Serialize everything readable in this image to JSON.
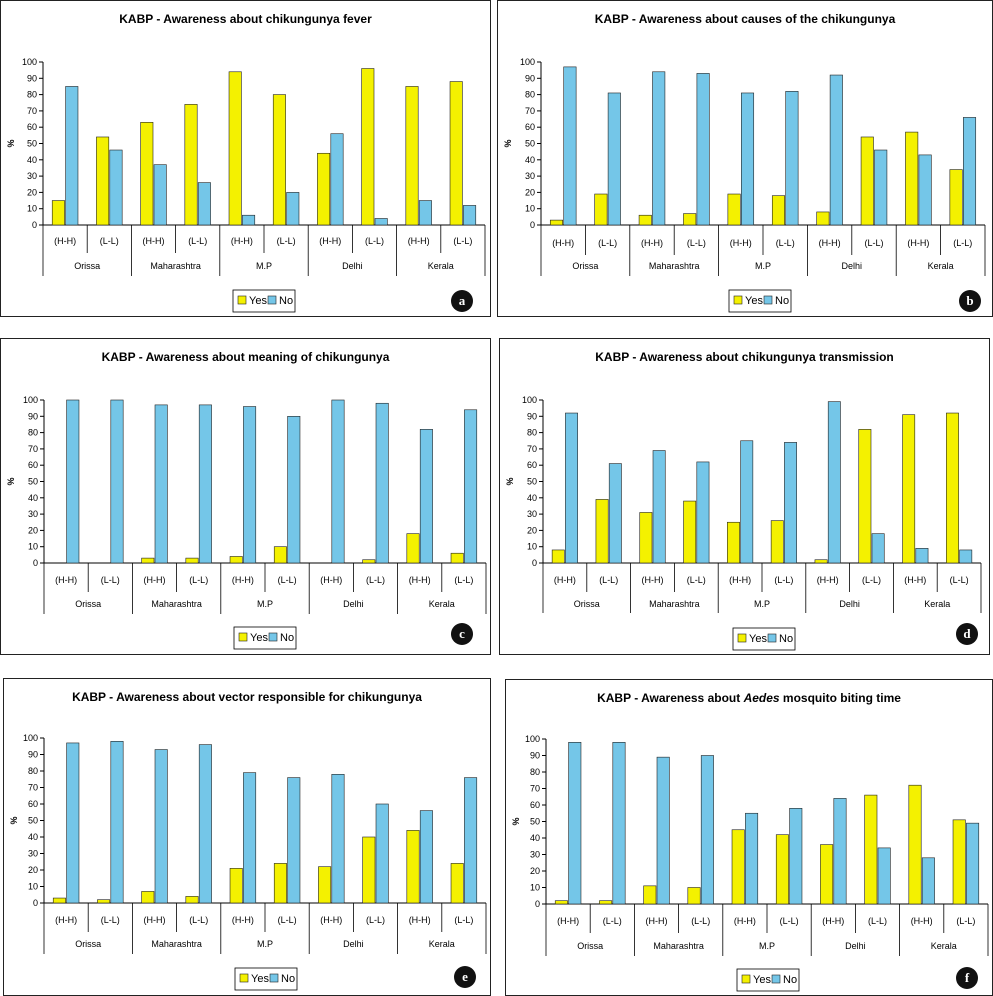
{
  "colors": {
    "yes": "#f4f100",
    "no": "#74c6e8",
    "badge": "#111111"
  },
  "chart_data": [
    {
      "id": "a",
      "type": "bar",
      "title": "KABP - Awareness about chikungunya fever",
      "title_parts": [
        {
          "text": "KABP - Awareness about chikungunya fever",
          "italic": false
        }
      ],
      "ylabel": "%",
      "ylim": [
        0,
        100
      ],
      "yticks": [
        "0",
        "10",
        "20",
        "30",
        "40",
        "50",
        "60",
        "70",
        "80",
        "90",
        "100"
      ],
      "categories": [
        "(H-H)",
        "(L-L)",
        "(H-H)",
        "(L-L)",
        "(H-H)",
        "(L-L)",
        "(H-H)",
        "(L-L)",
        "(H-H)",
        "(L-L)"
      ],
      "groups": [
        "Orissa",
        "Maharashtra",
        "M.P",
        "Delhi",
        "Kerala"
      ],
      "series": [
        {
          "name": "Yes",
          "values": [
            15,
            54,
            63,
            74,
            94,
            80,
            44,
            96,
            85,
            88
          ]
        },
        {
          "name": "No",
          "values": [
            85,
            46,
            37,
            26,
            6,
            20,
            56,
            4,
            15,
            12
          ]
        }
      ],
      "legend": [
        "Yes",
        "No"
      ],
      "badge": "a"
    },
    {
      "id": "b",
      "type": "bar",
      "title": "KABP - Awareness about causes of the chikungunya",
      "title_parts": [
        {
          "text": "KABP - Awareness about causes of the chikungunya",
          "italic": false
        }
      ],
      "ylabel": "%",
      "ylim": [
        0,
        100
      ],
      "yticks": [
        "0",
        "10",
        "20",
        "30",
        "40",
        "50",
        "60",
        "70",
        "80",
        "90",
        "100"
      ],
      "categories": [
        "(H-H)",
        "(L-L)",
        "(H-H)",
        "(L-L)",
        "(H-H)",
        "(L-L)",
        "(H-H)",
        "(L-L)",
        "(H-H)",
        "(L-L)"
      ],
      "groups": [
        "Orissa",
        "Maharashtra",
        "M.P",
        "Delhi",
        "Kerala"
      ],
      "series": [
        {
          "name": "Yes",
          "values": [
            3,
            19,
            6,
            7,
            19,
            18,
            8,
            54,
            57,
            34
          ]
        },
        {
          "name": "No",
          "values": [
            97,
            81,
            94,
            93,
            81,
            82,
            92,
            46,
            43,
            66
          ]
        }
      ],
      "legend": [
        "Yes",
        "No"
      ],
      "badge": "b"
    },
    {
      "id": "c",
      "type": "bar",
      "title": "KABP - Awareness about meaning of chikungunya",
      "title_parts": [
        {
          "text": "KABP - Awareness about meaning of chikungunya",
          "italic": false
        }
      ],
      "ylabel": "%",
      "ylim": [
        0,
        100
      ],
      "yticks": [
        "0",
        "10",
        "20",
        "30",
        "40",
        "50",
        "60",
        "70",
        "80",
        "90",
        "100"
      ],
      "categories": [
        "(H-H)",
        "(L-L)",
        "(H-H)",
        "(L-L)",
        "(H-H)",
        "(L-L)",
        "(H-H)",
        "(L-L)",
        "(H-H)",
        "(L-L)"
      ],
      "groups": [
        "Orissa",
        "Maharashtra",
        "M.P",
        "Delhi",
        "Kerala"
      ],
      "series": [
        {
          "name": "Yes",
          "values": [
            0,
            0,
            3,
            3,
            4,
            10,
            0,
            2,
            18,
            6
          ]
        },
        {
          "name": "No",
          "values": [
            100,
            100,
            97,
            97,
            96,
            90,
            100,
            98,
            82,
            94
          ]
        }
      ],
      "legend": [
        "Yes",
        "No"
      ],
      "badge": "c"
    },
    {
      "id": "d",
      "type": "bar",
      "title": "KABP - Awareness about chikungunya transmission",
      "title_parts": [
        {
          "text": "KABP - Awareness about chikungunya transmission",
          "italic": false
        }
      ],
      "ylabel": "%",
      "ylim": [
        0,
        100
      ],
      "yticks": [
        "0",
        "10",
        "20",
        "30",
        "40",
        "50",
        "60",
        "70",
        "80",
        "90",
        "100"
      ],
      "categories": [
        "(H-H)",
        "(L-L)",
        "(H-H)",
        "(L-L)",
        "(H-H)",
        "(L-L)",
        "(H-H)",
        "(L-L)",
        "(H-H)",
        "(L-L)"
      ],
      "groups": [
        "Orissa",
        "Maharashtra",
        "M.P",
        "Delhi",
        "Kerala"
      ],
      "series": [
        {
          "name": "Yes",
          "values": [
            8,
            39,
            31,
            38,
            25,
            26,
            2,
            82,
            91,
            92
          ]
        },
        {
          "name": "No",
          "values": [
            92,
            61,
            69,
            62,
            75,
            74,
            99,
            18,
            9,
            8
          ]
        }
      ],
      "legend": [
        "Yes",
        "No"
      ],
      "badge": "d"
    },
    {
      "id": "e",
      "type": "bar",
      "title": "KABP - Awareness about vector responsible for chikungunya",
      "title_parts": [
        {
          "text": "KABP - Awareness about vector responsible for chikungunya",
          "italic": false
        }
      ],
      "ylabel": "%",
      "ylim": [
        0,
        100
      ],
      "yticks": [
        "0",
        "10",
        "20",
        "30",
        "40",
        "50",
        "60",
        "70",
        "80",
        "90",
        "100"
      ],
      "categories": [
        "(H-H)",
        "(L-L)",
        "(H-H)",
        "(L-L)",
        "(H-H)",
        "(L-L)",
        "(H-H)",
        "(L-L)",
        "(H-H)",
        "(L-L)"
      ],
      "groups": [
        "Orissa",
        "Maharashtra",
        "M.P",
        "Delhi",
        "Kerala"
      ],
      "series": [
        {
          "name": "Yes",
          "values": [
            3,
            2,
            7,
            4,
            21,
            24,
            22,
            40,
            44,
            24
          ]
        },
        {
          "name": "No",
          "values": [
            97,
            98,
            93,
            96,
            79,
            76,
            78,
            60,
            56,
            76
          ]
        }
      ],
      "legend": [
        "Yes",
        "No"
      ],
      "badge": "e"
    },
    {
      "id": "f",
      "type": "bar",
      "title": "KABP - Awareness about Aedes mosquito biting time",
      "title_parts": [
        {
          "text": "KABP - Awareness about ",
          "italic": false
        },
        {
          "text": "Aedes",
          "italic": true
        },
        {
          "text": " mosquito biting time",
          "italic": false
        }
      ],
      "ylabel": "%",
      "ylim": [
        0,
        100
      ],
      "yticks": [
        "0",
        "10",
        "20",
        "30",
        "40",
        "50",
        "60",
        "70",
        "80",
        "90",
        "100"
      ],
      "categories": [
        "(H-H)",
        "(L-L)",
        "(H-H)",
        "(L-L)",
        "(H-H)",
        "(L-L)",
        "(H-H)",
        "(L-L)",
        "(H-H)",
        "(L-L)"
      ],
      "groups": [
        "Orissa",
        "Maharashtra",
        "M.P",
        "Delhi",
        "Kerala"
      ],
      "series": [
        {
          "name": "Yes",
          "values": [
            2,
            2,
            11,
            10,
            45,
            42,
            36,
            66,
            72,
            51
          ]
        },
        {
          "name": "No",
          "values": [
            98,
            98,
            89,
            90,
            55,
            58,
            64,
            34,
            28,
            49
          ]
        }
      ],
      "legend": [
        "Yes",
        "No"
      ],
      "badge": "f"
    }
  ]
}
